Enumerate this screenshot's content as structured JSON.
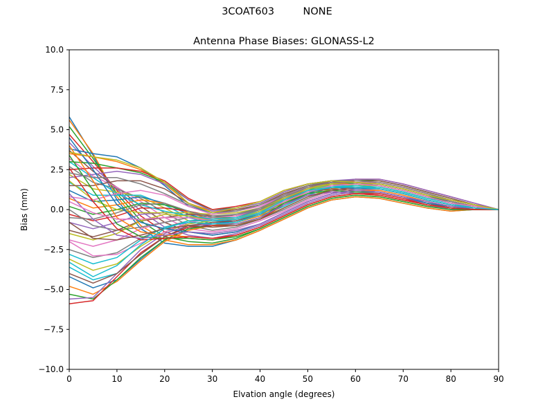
{
  "figure": {
    "suptitle": "3COAT603         NONE"
  },
  "chart_data": {
    "type": "line",
    "title": "Antenna Phase Biases: GLONASS-L2",
    "xlabel": "Elvation angle (degrees)",
    "ylabel": "Bias (mm)",
    "xlim": [
      0,
      90
    ],
    "ylim": [
      -10,
      10
    ],
    "xticks": [
      0,
      10,
      20,
      30,
      40,
      50,
      60,
      70,
      80,
      90
    ],
    "yticks": [
      -10.0,
      -7.5,
      -5.0,
      -2.5,
      0.0,
      2.5,
      5.0,
      7.5,
      10.0
    ],
    "xtick_labels": [
      "0",
      "10",
      "20",
      "30",
      "40",
      "50",
      "60",
      "70",
      "80",
      "90"
    ],
    "ytick_labels": [
      "−10.0",
      "−7.5",
      "−5.0",
      "−2.5",
      "0.0",
      "2.5",
      "5.0",
      "7.5",
      "10.0"
    ],
    "grid": false,
    "legend": "none",
    "colors": [
      "#1f77b4",
      "#ff7f0e",
      "#2ca02c",
      "#d62728",
      "#9467bd",
      "#8c564b",
      "#e377c2",
      "#7f7f7f",
      "#bcbd22",
      "#17becf"
    ],
    "x": [
      0,
      5,
      10,
      15,
      20,
      25,
      30,
      35,
      40,
      45,
      50,
      55,
      60,
      65,
      70,
      75,
      80,
      85,
      90
    ],
    "series": [
      {
        "values": [
          5.8,
          3.4,
          0.6,
          -1.2,
          -2.1,
          -2.3,
          -2.3,
          -1.9,
          -1.3,
          -0.6,
          0.1,
          0.6,
          0.8,
          0.7,
          0.4,
          0.1,
          -0.1,
          0.0,
          0.0
        ]
      },
      {
        "values": [
          5.6,
          3.5,
          0.8,
          -1.0,
          -1.9,
          -2.2,
          -2.2,
          -1.9,
          -1.3,
          -0.6,
          0.1,
          0.6,
          0.8,
          0.7,
          0.4,
          0.1,
          -0.1,
          0.0,
          0.0
        ]
      },
      {
        "values": [
          5.2,
          3.2,
          1.0,
          -0.7,
          -1.7,
          -2.0,
          -2.1,
          -1.8,
          -1.2,
          -0.5,
          0.2,
          0.7,
          0.9,
          0.8,
          0.5,
          0.2,
          0.0,
          0.0,
          0.0
        ]
      },
      {
        "values": [
          4.7,
          3.0,
          1.2,
          -0.4,
          -1.4,
          -1.8,
          -1.9,
          -1.6,
          -1.1,
          -0.4,
          0.3,
          0.8,
          1.0,
          0.9,
          0.6,
          0.3,
          0.1,
          0.0,
          0.0
        ]
      },
      {
        "values": [
          4.2,
          2.7,
          1.3,
          -0.1,
          -1.1,
          -1.6,
          -1.8,
          -1.5,
          -1.0,
          -0.3,
          0.4,
          0.9,
          1.1,
          1.0,
          0.7,
          0.4,
          0.1,
          0.0,
          0.0
        ]
      },
      {
        "values": [
          3.7,
          2.4,
          1.4,
          0.2,
          -0.8,
          -1.4,
          -1.6,
          -1.4,
          -0.9,
          -0.2,
          0.5,
          1.0,
          1.2,
          1.1,
          0.8,
          0.4,
          0.2,
          0.0,
          0.0
        ]
      },
      {
        "values": [
          3.2,
          2.1,
          1.4,
          0.5,
          -0.5,
          -1.2,
          -1.4,
          -1.2,
          -0.7,
          -0.1,
          0.6,
          1.1,
          1.3,
          1.2,
          0.9,
          0.5,
          0.2,
          0.0,
          0.0
        ]
      },
      {
        "values": [
          2.7,
          1.7,
          1.3,
          0.7,
          -0.2,
          -1.0,
          -1.3,
          -1.1,
          -0.6,
          0.0,
          0.7,
          1.2,
          1.4,
          1.3,
          1.0,
          0.6,
          0.3,
          0.1,
          0.0
        ]
      },
      {
        "values": [
          2.2,
          1.3,
          1.1,
          0.8,
          0.1,
          -0.7,
          -1.1,
          -1.0,
          -0.5,
          0.1,
          0.8,
          1.3,
          1.5,
          1.4,
          1.1,
          0.7,
          0.4,
          0.1,
          0.0
        ]
      },
      {
        "values": [
          1.7,
          0.9,
          0.9,
          0.9,
          0.3,
          -0.5,
          -0.9,
          -0.8,
          -0.4,
          0.2,
          0.9,
          1.4,
          1.6,
          1.5,
          1.2,
          0.8,
          0.4,
          0.1,
          0.0
        ]
      },
      {
        "values": [
          1.2,
          0.5,
          0.6,
          0.8,
          0.4,
          -0.3,
          -0.7,
          -0.7,
          -0.3,
          0.3,
          1.0,
          1.5,
          1.7,
          1.6,
          1.3,
          0.9,
          0.5,
          0.2,
          0.0
        ]
      },
      {
        "values": [
          0.7,
          0.1,
          0.3,
          0.6,
          0.4,
          -0.2,
          -0.6,
          -0.6,
          -0.2,
          0.4,
          1.1,
          1.6,
          1.8,
          1.7,
          1.4,
          1.0,
          0.6,
          0.3,
          0.0
        ]
      },
      {
        "values": [
          0.2,
          -0.3,
          0.0,
          0.4,
          0.3,
          -0.1,
          -0.5,
          -0.5,
          -0.1,
          0.5,
          1.2,
          1.7,
          1.9,
          1.8,
          1.5,
          1.1,
          0.7,
          0.3,
          0.0
        ]
      },
      {
        "values": [
          -0.3,
          -0.7,
          -0.4,
          0.1,
          0.1,
          -0.1,
          -0.4,
          -0.4,
          0.0,
          0.6,
          1.3,
          1.7,
          1.9,
          1.9,
          1.6,
          1.2,
          0.8,
          0.4,
          0.0
        ]
      },
      {
        "values": [
          -0.8,
          -1.2,
          -0.8,
          -0.3,
          -0.2,
          -0.2,
          -0.4,
          -0.4,
          0.0,
          0.7,
          1.4,
          1.8,
          1.9,
          1.9,
          1.6,
          1.2,
          0.8,
          0.4,
          0.0
        ]
      },
      {
        "values": [
          -1.3,
          -1.7,
          -1.3,
          -0.7,
          -0.5,
          -0.3,
          -0.4,
          -0.4,
          0.1,
          0.8,
          1.5,
          1.8,
          1.8,
          1.8,
          1.5,
          1.1,
          0.7,
          0.3,
          0.0
        ]
      },
      {
        "values": [
          -1.9,
          -2.3,
          -1.9,
          -1.2,
          -0.8,
          -0.5,
          -0.5,
          -0.4,
          0.1,
          0.9,
          1.5,
          1.7,
          1.7,
          1.7,
          1.4,
          1.0,
          0.6,
          0.3,
          0.0
        ]
      },
      {
        "values": [
          -2.5,
          -3.0,
          -2.7,
          -1.8,
          -1.1,
          -0.7,
          -0.6,
          -0.5,
          0.0,
          0.9,
          1.5,
          1.7,
          1.6,
          1.6,
          1.3,
          0.9,
          0.6,
          0.3,
          0.0
        ]
      },
      {
        "values": [
          -3.1,
          -3.8,
          -3.4,
          -2.3,
          -1.4,
          -0.9,
          -0.7,
          -0.6,
          -0.1,
          0.8,
          1.4,
          1.6,
          1.5,
          1.5,
          1.2,
          0.8,
          0.5,
          0.2,
          0.0
        ]
      },
      {
        "values": [
          -3.6,
          -4.4,
          -4.0,
          -2.8,
          -1.7,
          -1.1,
          -0.8,
          -0.7,
          -0.2,
          0.7,
          1.3,
          1.5,
          1.4,
          1.4,
          1.1,
          0.7,
          0.4,
          0.2,
          0.0
        ]
      },
      {
        "values": [
          -4.2,
          -4.9,
          -4.4,
          -3.1,
          -1.9,
          -1.2,
          -0.9,
          -0.7,
          -0.3,
          0.6,
          1.2,
          1.4,
          1.3,
          1.3,
          1.0,
          0.6,
          0.3,
          0.1,
          0.0
        ]
      },
      {
        "values": [
          -4.8,
          -5.3,
          -4.5,
          -3.2,
          -2.0,
          -1.3,
          -1.0,
          -0.8,
          -0.4,
          0.5,
          1.1,
          1.3,
          1.2,
          1.2,
          0.9,
          0.5,
          0.2,
          0.1,
          0.0
        ]
      },
      {
        "values": [
          -5.3,
          -5.6,
          -4.4,
          -3.0,
          -1.9,
          -1.2,
          -1.0,
          -0.9,
          -0.5,
          0.4,
          1.0,
          1.2,
          1.1,
          1.1,
          0.8,
          0.4,
          0.1,
          0.0,
          0.0
        ]
      },
      {
        "values": [
          -5.9,
          -5.7,
          -4.2,
          -2.7,
          -1.7,
          -1.1,
          -1.0,
          -1.0,
          -0.6,
          0.3,
          0.9,
          1.1,
          1.0,
          1.0,
          0.7,
          0.3,
          0.0,
          0.0,
          0.0
        ]
      },
      {
        "values": [
          -5.6,
          -5.5,
          -4.0,
          -2.5,
          -1.5,
          -1.0,
          -0.9,
          -0.9,
          -0.5,
          0.3,
          0.9,
          1.1,
          1.0,
          0.9,
          0.6,
          0.3,
          0.0,
          0.0,
          0.0
        ]
      },
      {
        "values": [
          -4.0,
          -4.6,
          -4.0,
          -2.8,
          -1.7,
          -1.0,
          -0.8,
          -0.7,
          -0.3,
          0.5,
          1.1,
          1.3,
          1.2,
          1.1,
          0.8,
          0.4,
          0.1,
          0.0,
          0.0
        ]
      },
      {
        "values": [
          -2.0,
          -2.9,
          -2.8,
          -2.1,
          -1.4,
          -0.8,
          -0.6,
          -0.5,
          -0.1,
          0.6,
          1.2,
          1.4,
          1.4,
          1.3,
          1.0,
          0.6,
          0.3,
          0.1,
          0.0
        ]
      },
      {
        "values": [
          0.0,
          -1.0,
          -1.3,
          -1.1,
          -0.8,
          -0.5,
          -0.4,
          -0.3,
          0.0,
          0.7,
          1.3,
          1.6,
          1.6,
          1.5,
          1.2,
          0.8,
          0.4,
          0.2,
          0.0
        ]
      },
      {
        "values": [
          1.8,
          0.6,
          0.0,
          -0.2,
          -0.2,
          -0.2,
          -0.3,
          -0.2,
          0.1,
          0.7,
          1.3,
          1.6,
          1.7,
          1.6,
          1.3,
          0.9,
          0.5,
          0.2,
          0.0
        ]
      },
      {
        "values": [
          3.0,
          2.0,
          1.0,
          0.3,
          -0.1,
          -0.4,
          -0.6,
          -0.5,
          -0.1,
          0.5,
          1.1,
          1.5,
          1.6,
          1.5,
          1.2,
          0.8,
          0.5,
          0.2,
          0.0
        ]
      },
      {
        "values": [
          3.8,
          3.5,
          3.3,
          2.6,
          1.5,
          0.2,
          -0.2,
          -0.1,
          0.3,
          1.0,
          1.5,
          1.7,
          1.6,
          1.5,
          1.2,
          0.8,
          0.5,
          0.2,
          0.0
        ]
      },
      {
        "values": [
          3.5,
          3.3,
          3.0,
          2.5,
          1.6,
          0.4,
          -0.1,
          0.0,
          0.3,
          1.0,
          1.5,
          1.7,
          1.6,
          1.5,
          1.2,
          0.8,
          0.5,
          0.2,
          0.0
        ]
      },
      {
        "values": [
          3.0,
          2.9,
          2.6,
          2.3,
          1.7,
          0.6,
          0.0,
          0.1,
          0.4,
          1.1,
          1.6,
          1.8,
          1.6,
          1.5,
          1.2,
          0.8,
          0.5,
          0.2,
          0.0
        ]
      },
      {
        "values": [
          2.5,
          2.6,
          2.6,
          2.4,
          1.8,
          0.7,
          0.0,
          0.2,
          0.5,
          1.2,
          1.6,
          1.8,
          1.7,
          1.6,
          1.3,
          0.9,
          0.5,
          0.2,
          0.0
        ]
      },
      {
        "values": [
          2.0,
          2.2,
          2.4,
          2.2,
          1.6,
          0.6,
          -0.1,
          0.1,
          0.4,
          1.1,
          1.6,
          1.8,
          1.7,
          1.6,
          1.3,
          0.9,
          0.5,
          0.2,
          0.0
        ]
      },
      {
        "values": [
          1.5,
          1.5,
          1.8,
          1.8,
          1.3,
          0.4,
          -0.2,
          0.0,
          0.3,
          1.0,
          1.5,
          1.7,
          1.7,
          1.6,
          1.3,
          0.9,
          0.5,
          0.2,
          0.0
        ]
      },
      {
        "values": [
          0.8,
          0.6,
          1.0,
          1.2,
          0.9,
          0.2,
          -0.3,
          -0.1,
          0.2,
          0.9,
          1.4,
          1.7,
          1.7,
          1.6,
          1.3,
          0.9,
          0.5,
          0.2,
          0.0
        ]
      },
      {
        "values": [
          -0.5,
          -0.6,
          -0.2,
          0.3,
          0.4,
          -0.1,
          -0.5,
          -0.3,
          0.1,
          0.8,
          1.4,
          1.7,
          1.7,
          1.6,
          1.3,
          0.9,
          0.5,
          0.2,
          0.0
        ]
      },
      {
        "values": [
          -1.5,
          -1.9,
          -1.5,
          -0.7,
          -0.3,
          -0.4,
          -0.7,
          -0.6,
          -0.1,
          0.6,
          1.2,
          1.5,
          1.6,
          1.5,
          1.2,
          0.8,
          0.4,
          0.2,
          0.0
        ]
      },
      {
        "values": [
          -2.8,
          -3.4,
          -3.0,
          -1.9,
          -1.1,
          -0.8,
          -0.9,
          -0.8,
          -0.3,
          0.5,
          1.1,
          1.4,
          1.5,
          1.4,
          1.1,
          0.7,
          0.4,
          0.1,
          0.0
        ]
      },
      {
        "values": [
          4.5,
          2.5,
          0.3,
          -0.8,
          -1.2,
          -1.4,
          -1.6,
          -1.4,
          -0.9,
          -0.2,
          0.5,
          1.0,
          1.2,
          1.1,
          0.8,
          0.4,
          0.2,
          0.0,
          0.0
        ]
      },
      {
        "values": [
          4.0,
          1.8,
          -0.5,
          -1.4,
          -1.6,
          -1.7,
          -1.8,
          -1.6,
          -1.1,
          -0.4,
          0.3,
          0.8,
          1.0,
          0.9,
          0.6,
          0.3,
          0.1,
          0.0,
          0.0
        ]
      },
      {
        "values": [
          3.4,
          1.2,
          -0.9,
          -1.7,
          -1.8,
          -1.8,
          -1.9,
          -1.7,
          -1.2,
          -0.5,
          0.2,
          0.7,
          0.9,
          0.8,
          0.5,
          0.2,
          0.0,
          0.0,
          0.0
        ]
      },
      {
        "values": [
          2.6,
          0.5,
          -1.2,
          -1.9,
          -1.8,
          -1.7,
          -1.8,
          -1.6,
          -1.1,
          -0.4,
          0.3,
          0.8,
          1.0,
          0.9,
          0.6,
          0.3,
          0.1,
          0.0,
          0.0
        ]
      },
      {
        "values": [
          1.0,
          -0.6,
          -1.6,
          -1.8,
          -1.6,
          -1.4,
          -1.5,
          -1.3,
          -0.9,
          -0.2,
          0.5,
          1.0,
          1.2,
          1.1,
          0.8,
          0.5,
          0.2,
          0.1,
          0.0
        ]
      },
      {
        "values": [
          -0.8,
          -1.8,
          -1.9,
          -1.6,
          -1.2,
          -1.0,
          -1.1,
          -1.0,
          -0.6,
          0.1,
          0.8,
          1.2,
          1.4,
          1.3,
          1.0,
          0.6,
          0.3,
          0.1,
          0.0
        ]
      },
      {
        "values": [
          0.5,
          -0.2,
          -0.6,
          -0.6,
          -0.5,
          -0.5,
          -0.7,
          -0.6,
          -0.2,
          0.5,
          1.1,
          1.5,
          1.6,
          1.5,
          1.2,
          0.8,
          0.4,
          0.2,
          0.0
        ]
      },
      {
        "values": [
          2.3,
          2.0,
          2.0,
          1.6,
          1.0,
          0.3,
          -0.2,
          -0.1,
          0.3,
          0.9,
          1.5,
          1.8,
          1.8,
          1.7,
          1.4,
          1.0,
          0.6,
          0.3,
          0.0
        ]
      },
      {
        "values": [
          3.6,
          3.3,
          3.1,
          2.6,
          1.7,
          0.4,
          -0.2,
          0.1,
          0.5,
          1.2,
          1.6,
          1.8,
          1.7,
          1.6,
          1.3,
          0.9,
          0.6,
          0.3,
          0.0
        ]
      },
      {
        "values": [
          -3.3,
          -4.2,
          -3.5,
          -2.2,
          -1.2,
          -0.7,
          -0.7,
          -0.6,
          -0.2,
          0.6,
          1.2,
          1.4,
          1.4,
          1.3,
          1.0,
          0.6,
          0.3,
          0.1,
          0.0
        ]
      }
    ]
  }
}
